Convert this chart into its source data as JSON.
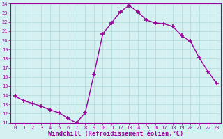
{
  "x": [
    0,
    1,
    2,
    3,
    4,
    5,
    6,
    7,
    8,
    9,
    10,
    11,
    12,
    13,
    14,
    15,
    16,
    17,
    18,
    19,
    20,
    21,
    22,
    23
  ],
  "y": [
    13.9,
    13.4,
    13.1,
    12.8,
    12.4,
    12.1,
    11.5,
    11.0,
    12.1,
    16.3,
    20.7,
    21.9,
    23.1,
    23.8,
    23.1,
    22.2,
    21.9,
    21.8,
    21.5,
    20.5,
    19.9,
    18.1,
    16.6,
    15.3
  ],
  "line_color": "#990099",
  "marker": "+",
  "marker_size": 4,
  "marker_linewidth": 1.2,
  "bg_color": "#d4f0f0",
  "grid_color": "#b0d8d8",
  "xlabel": "Windchill (Refroidissement éolien,°C)",
  "xlabel_color": "#990099",
  "ylim": [
    11,
    24
  ],
  "xlim": [
    -0.5,
    23.5
  ],
  "yticks": [
    11,
    12,
    13,
    14,
    15,
    16,
    17,
    18,
    19,
    20,
    21,
    22,
    23,
    24
  ],
  "xticks": [
    0,
    1,
    2,
    3,
    4,
    5,
    6,
    7,
    8,
    9,
    10,
    11,
    12,
    13,
    14,
    15,
    16,
    17,
    18,
    19,
    20,
    21,
    22,
    23
  ],
  "tick_color": "#990099",
  "tick_fontsize": 5.0,
  "xlabel_fontsize": 6.2,
  "spine_color": "#990099",
  "linewidth": 1.0
}
